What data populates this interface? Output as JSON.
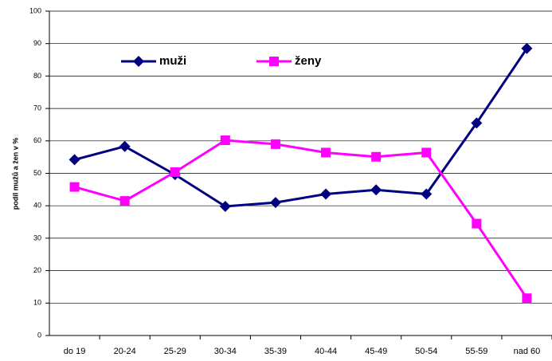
{
  "chart_data": {
    "type": "line",
    "ylabel": "podíl mužů a žen v %",
    "categories": [
      "do 19",
      "20-24",
      "25-29",
      "30-34",
      "35-39",
      "40-44",
      "45-49",
      "50-54",
      "55-59",
      "nad 60"
    ],
    "series": [
      {
        "name": "muži",
        "color": "#000080",
        "marker": "diamond",
        "values": [
          54.2,
          58.3,
          49.6,
          39.8,
          41,
          43.6,
          44.9,
          43.6,
          65.5,
          88.5
        ]
      },
      {
        "name": "ženy",
        "color": "#ff00ff",
        "marker": "square",
        "values": [
          45.8,
          41.5,
          50.4,
          60.2,
          59,
          56.4,
          55.1,
          56.4,
          34.5,
          11.5
        ]
      }
    ],
    "ylim": [
      0,
      100
    ],
    "yticks": [
      0,
      10,
      20,
      30,
      40,
      50,
      60,
      70,
      80,
      90,
      100
    ],
    "grid": true,
    "legend": "top-left"
  }
}
